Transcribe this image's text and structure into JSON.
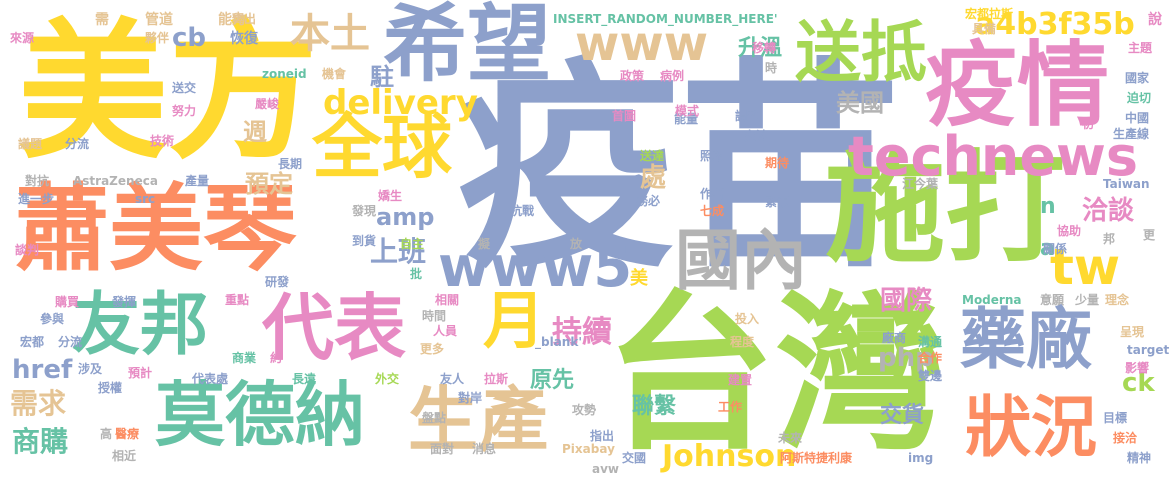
{
  "palette": {
    "blue": "#8da0cb",
    "green": "#a6d854",
    "orange": "#fc8d62",
    "yellow": "#ffd92f",
    "tan": "#e5c494",
    "pink": "#e78ac3",
    "teal": "#66c2a5",
    "gray": "#b3b3b3"
  },
  "words": [
    {
      "text": "疫苗",
      "color": "#8da0cb"
    },
    {
      "text": "台灣",
      "color": "#a6d854"
    },
    {
      "text": "美方",
      "color": "#ffd92f"
    },
    {
      "text": "希望",
      "color": "#8da0cb"
    },
    {
      "text": "疫情",
      "color": "#e78ac3"
    },
    {
      "text": "蕭美琴",
      "color": "#fc8d62"
    },
    {
      "text": "施打",
      "color": "#a6d854"
    },
    {
      "text": "全球",
      "color": "#ffd92f"
    },
    {
      "text": "www",
      "color": "#e5c494"
    },
    {
      "text": "送抵",
      "color": "#a6d854"
    },
    {
      "text": "technews",
      "color": "#e78ac3"
    },
    {
      "text": "國內",
      "color": "#b3b3b3"
    },
    {
      "text": "友邦",
      "color": "#66c2a5"
    },
    {
      "text": "代表",
      "color": "#e78ac3"
    },
    {
      "text": "莫德納",
      "color": "#66c2a5"
    },
    {
      "text": "生產",
      "color": "#e5c494"
    },
    {
      "text": "藥廠",
      "color": "#8da0cb"
    },
    {
      "text": "狀況",
      "color": "#fc8d62"
    },
    {
      "text": "www5",
      "color": "#8da0cb"
    },
    {
      "text": "月",
      "color": "#ffd92f"
    },
    {
      "text": "tw",
      "color": "#ffd92f"
    },
    {
      "text": "本土",
      "color": "#e5c494"
    },
    {
      "text": "delivery",
      "color": "#ffd92f"
    },
    {
      "text": "a4b3f35b",
      "color": "#ffd92f"
    },
    {
      "text": "Johnson",
      "color": "#ffd92f"
    },
    {
      "text": "持續",
      "color": "#e78ac3"
    },
    {
      "text": "上班",
      "color": "#8da0cb"
    },
    {
      "text": "美國",
      "color": "#b3b3b3"
    },
    {
      "text": "國際",
      "color": "#e78ac3"
    },
    {
      "text": "洽談",
      "color": "#e78ac3"
    },
    {
      "text": "php",
      "color": "#b3b3b3"
    },
    {
      "text": "需求",
      "color": "#e5c494"
    },
    {
      "text": "商購",
      "color": "#66c2a5"
    },
    {
      "text": "聯繫",
      "color": "#66c2a5"
    },
    {
      "text": "原先",
      "color": "#66c2a5"
    },
    {
      "text": "交貨",
      "color": "#8da0cb"
    },
    {
      "text": "amp",
      "color": "#8da0cb"
    },
    {
      "text": "href",
      "color": "#8da0cb"
    },
    {
      "text": "預定",
      "color": "#e5c494"
    },
    {
      "text": "處",
      "color": "#e5c494"
    },
    {
      "text": "升溫",
      "color": "#66c2a5"
    },
    {
      "text": "週",
      "color": "#e5c494"
    },
    {
      "text": "駐",
      "color": "#8da0cb"
    },
    {
      "text": "cb",
      "color": "#8da0cb"
    },
    {
      "text": "ck",
      "color": "#a6d854"
    },
    {
      "text": "n",
      "color": "#66c2a5"
    },
    {
      "text": "a",
      "color": "#66c2a5"
    },
    {
      "text": "美",
      "color": "#ffd92f"
    },
    {
      "text": "INSERT_RANDOM_NUMBER_HERE'",
      "color": "#66c2a5"
    },
    {
      "text": "宏都拉斯",
      "color": "#ffd92f"
    },
    {
      "text": "具備",
      "color": "#e5c494"
    },
    {
      "text": "需",
      "color": "#e5c494"
    },
    {
      "text": "管道",
      "color": "#e5c494"
    },
    {
      "text": "能力",
      "color": "#e5c494"
    },
    {
      "text": "釋出",
      "color": "#e5c494"
    },
    {
      "text": "說",
      "color": "#e78ac3"
    },
    {
      "text": "來源",
      "color": "#e78ac3"
    },
    {
      "text": "夥伴",
      "color": "#e5c494"
    },
    {
      "text": "恢復",
      "color": "#8da0cb"
    },
    {
      "text": "移轉",
      "color": "#e78ac3"
    },
    {
      "text": "主題",
      "color": "#e78ac3"
    },
    {
      "text": "政策",
      "color": "#e78ac3"
    },
    {
      "text": "病例",
      "color": "#e78ac3"
    },
    {
      "text": "國家",
      "color": "#8da0cb"
    },
    {
      "text": "zoneid",
      "color": "#66c2a5"
    },
    {
      "text": "機會",
      "color": "#e5c494"
    },
    {
      "text": "迫切",
      "color": "#66c2a5"
    },
    {
      "text": "中國",
      "color": "#8da0cb"
    },
    {
      "text": "送交",
      "color": "#8da0cb"
    },
    {
      "text": "努力",
      "color": "#e78ac3"
    },
    {
      "text": "嚴峻",
      "color": "#e78ac3"
    },
    {
      "text": "首圖",
      "color": "#e78ac3"
    },
    {
      "text": "能量",
      "color": "#8da0cb"
    },
    {
      "text": "模式",
      "color": "#e78ac3"
    },
    {
      "text": "調整",
      "color": "#8da0cb"
    },
    {
      "text": "初",
      "color": "#e78ac3"
    },
    {
      "text": "生產線",
      "color": "#8da0cb"
    },
    {
      "text": "議題",
      "color": "#e5c494"
    },
    {
      "text": "分流",
      "color": "#8da0cb"
    },
    {
      "text": "技術",
      "color": "#e78ac3"
    },
    {
      "text": "交涉",
      "color": "#8da0cb"
    },
    {
      "text": "對抗",
      "color": "#b3b3b3"
    },
    {
      "text": "AstraZeneca",
      "color": "#b3b3b3"
    },
    {
      "text": "產量",
      "color": "#8da0cb"
    },
    {
      "text": "長期",
      "color": "#8da0cb"
    },
    {
      "text": "送達",
      "color": "#a6d854"
    },
    {
      "text": "照顧",
      "color": "#8da0cb"
    },
    {
      "text": "期待",
      "color": "#fc8d62"
    },
    {
      "text": "江今葉",
      "color": "#b3b3b3"
    },
    {
      "text": "進一步",
      "color": "#8da0cb"
    },
    {
      "text": "src",
      "color": "#8da0cb"
    },
    {
      "text": "嬌生",
      "color": "#e78ac3"
    },
    {
      "text": "作者",
      "color": "#8da0cb"
    },
    {
      "text": "緊張",
      "color": "#8da0cb"
    },
    {
      "text": "Taiwan",
      "color": "#8da0cb"
    },
    {
      "text": "發現",
      "color": "#b3b3b3"
    },
    {
      "text": "抗戰",
      "color": "#8da0cb"
    },
    {
      "text": "務必",
      "color": "#8da0cb"
    },
    {
      "text": "七成",
      "color": "#fc8d62"
    },
    {
      "text": "談判",
      "color": "#e78ac3"
    },
    {
      "text": "到貨",
      "color": "#8da0cb"
    },
    {
      "text": "自主",
      "color": "#a6d854"
    },
    {
      "text": "擬",
      "color": "#b3b3b3"
    },
    {
      "text": "放",
      "color": "#b3b3b3"
    },
    {
      "text": "協助",
      "color": "#e78ac3"
    },
    {
      "text": "關係",
      "color": "#8da0cb"
    },
    {
      "text": "邦",
      "color": "#b3b3b3"
    },
    {
      "text": "更",
      "color": "#b3b3b3"
    },
    {
      "text": "研發",
      "color": "#8da0cb"
    },
    {
      "text": "批",
      "color": "#66c2a5"
    },
    {
      "text": "購買",
      "color": "#e78ac3"
    },
    {
      "text": "發揮",
      "color": "#8da0cb"
    },
    {
      "text": "重點",
      "color": "#e78ac3"
    },
    {
      "text": "相關",
      "color": "#e78ac3"
    },
    {
      "text": "Moderna",
      "color": "#66c2a5"
    },
    {
      "text": "意願",
      "color": "#b3b3b3"
    },
    {
      "text": "少量",
      "color": "#b3b3b3"
    },
    {
      "text": "理念",
      "color": "#e5c494"
    },
    {
      "text": "參與",
      "color": "#8da0cb"
    },
    {
      "text": "時間",
      "color": "#b3b3b3"
    },
    {
      "text": "人員",
      "color": "#e78ac3"
    },
    {
      "text": "投入",
      "color": "#e5c494"
    },
    {
      "text": "呈現",
      "color": "#e5c494"
    },
    {
      "text": "宏都",
      "color": "#8da0cb"
    },
    {
      "text": "分流",
      "color": "#8da0cb"
    },
    {
      "text": "_blank'",
      "color": "#8da0cb"
    },
    {
      "text": "程度",
      "color": "#e5c494"
    },
    {
      "text": "廠商",
      "color": "#8da0cb"
    },
    {
      "text": "溝通",
      "color": "#66c2a5"
    },
    {
      "text": "target",
      "color": "#8da0cb"
    },
    {
      "text": "合作",
      "color": "#fc8d62"
    },
    {
      "text": "影響",
      "color": "#e78ac3"
    },
    {
      "text": "商業",
      "color": "#66c2a5"
    },
    {
      "text": "約",
      "color": "#e78ac3"
    },
    {
      "text": "更多",
      "color": "#e5c494"
    },
    {
      "text": "涉及",
      "color": "#8da0cb"
    },
    {
      "text": "預計",
      "color": "#e78ac3"
    },
    {
      "text": "代表處",
      "color": "#8da0cb"
    },
    {
      "text": "長遠",
      "color": "#66c2a5"
    },
    {
      "text": "外交",
      "color": "#a6d854"
    },
    {
      "text": "友人",
      "color": "#8da0cb"
    },
    {
      "text": "拉斯",
      "color": "#e78ac3"
    },
    {
      "text": "建置",
      "color": "#e78ac3"
    },
    {
      "text": "雙邊",
      "color": "#8da0cb"
    },
    {
      "text": "授權",
      "color": "#8da0cb"
    },
    {
      "text": "對岸",
      "color": "#8da0cb"
    },
    {
      "text": "工作",
      "color": "#fc8d62"
    },
    {
      "text": "目標",
      "color": "#8da0cb"
    },
    {
      "text": "高",
      "color": "#b3b3b3"
    },
    {
      "text": "醫療",
      "color": "#fc8d62"
    },
    {
      "text": "盤點",
      "color": "#b3b3b3"
    },
    {
      "text": "攻勢",
      "color": "#b3b3b3"
    },
    {
      "text": "接洽",
      "color": "#fc8d62"
    },
    {
      "text": "相近",
      "color": "#b3b3b3"
    },
    {
      "text": "指出",
      "color": "#8da0cb"
    },
    {
      "text": "未來",
      "color": "#b3b3b3"
    },
    {
      "text": "面對",
      "color": "#b3b3b3"
    },
    {
      "text": "消息",
      "color": "#b3b3b3"
    },
    {
      "text": "Pixabay",
      "color": "#e5c494"
    },
    {
      "text": "交國",
      "color": "#8da0cb"
    },
    {
      "text": "阿斯特捷利康",
      "color": "#fc8d62"
    },
    {
      "text": "img",
      "color": "#8da0cb"
    },
    {
      "text": "精神",
      "color": "#8da0cb"
    },
    {
      "text": "avw",
      "color": "#b3b3b3"
    },
    {
      "text": "時",
      "color": "#b3b3b3"
    }
  ]
}
